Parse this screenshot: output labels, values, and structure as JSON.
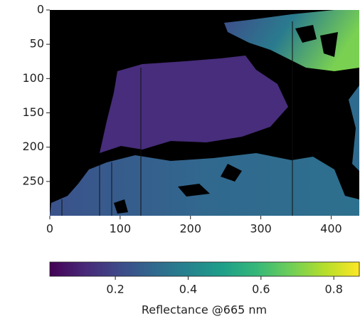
{
  "chart_data": {
    "type": "image",
    "xlim": [
      0,
      440
    ],
    "ylim": [
      300,
      0
    ],
    "xticks": [
      0,
      100,
      200,
      300,
      400
    ],
    "yticks": [
      0,
      50,
      100,
      150,
      200,
      250
    ],
    "colorbar": {
      "label": "Reflectance @665 nm",
      "colormap": "viridis",
      "clim": [
        0.02,
        0.87
      ],
      "ticks": [
        0.2,
        0.4,
        0.6,
        0.8
      ]
    }
  }
}
